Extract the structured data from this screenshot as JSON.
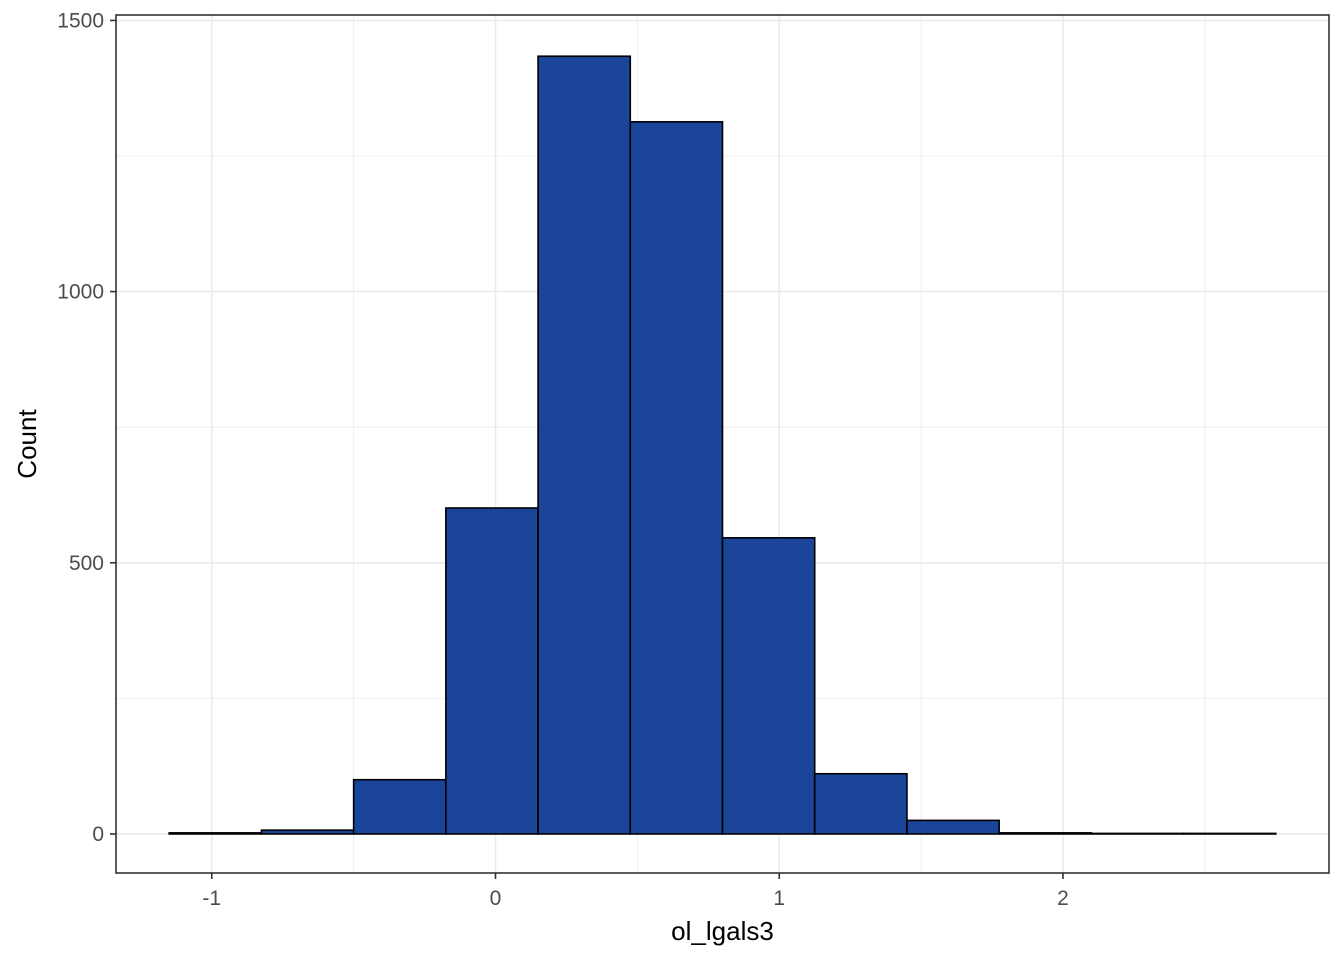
{
  "chart_data": {
    "type": "bar",
    "subtype": "histogram",
    "xlabel": "ol_lgals3",
    "ylabel": "Count",
    "bins": [
      {
        "x0": -1.15,
        "x1": -0.825,
        "count": 2
      },
      {
        "x0": -0.825,
        "x1": -0.5,
        "count": 7
      },
      {
        "x0": -0.5,
        "x1": -0.175,
        "count": 100
      },
      {
        "x0": -0.175,
        "x1": 0.15,
        "count": 601
      },
      {
        "x0": 0.15,
        "x1": 0.475,
        "count": 1434
      },
      {
        "x0": 0.475,
        "x1": 0.8,
        "count": 1313
      },
      {
        "x0": 0.8,
        "x1": 1.125,
        "count": 546
      },
      {
        "x0": 1.125,
        "x1": 1.45,
        "count": 111
      },
      {
        "x0": 1.45,
        "x1": 1.775,
        "count": 25
      },
      {
        "x0": 1.775,
        "x1": 2.1,
        "count": 2
      },
      {
        "x0": 2.1,
        "x1": 2.425,
        "count": 1
      },
      {
        "x0": 2.425,
        "x1": 2.75,
        "count": 1
      }
    ],
    "xticks": [
      -1,
      0,
      1,
      2
    ],
    "xtick_labels": [
      "-1",
      "0",
      "1",
      "2"
    ],
    "yticks": [
      0,
      500,
      1000,
      1500
    ],
    "ytick_labels": [
      "0",
      "500",
      "1000",
      "1500"
    ],
    "xlim": [
      -1.3375,
      2.9375
    ],
    "ylim": [
      -72,
      1510
    ],
    "grid": true,
    "legend": "none",
    "colors": {
      "bar_fill": "#1a4599",
      "bar_stroke": "#000000",
      "grid": "#ebebeb",
      "panel_border": "#333333",
      "tick_text": "#4d4d4d",
      "title_text": "#000000"
    }
  }
}
